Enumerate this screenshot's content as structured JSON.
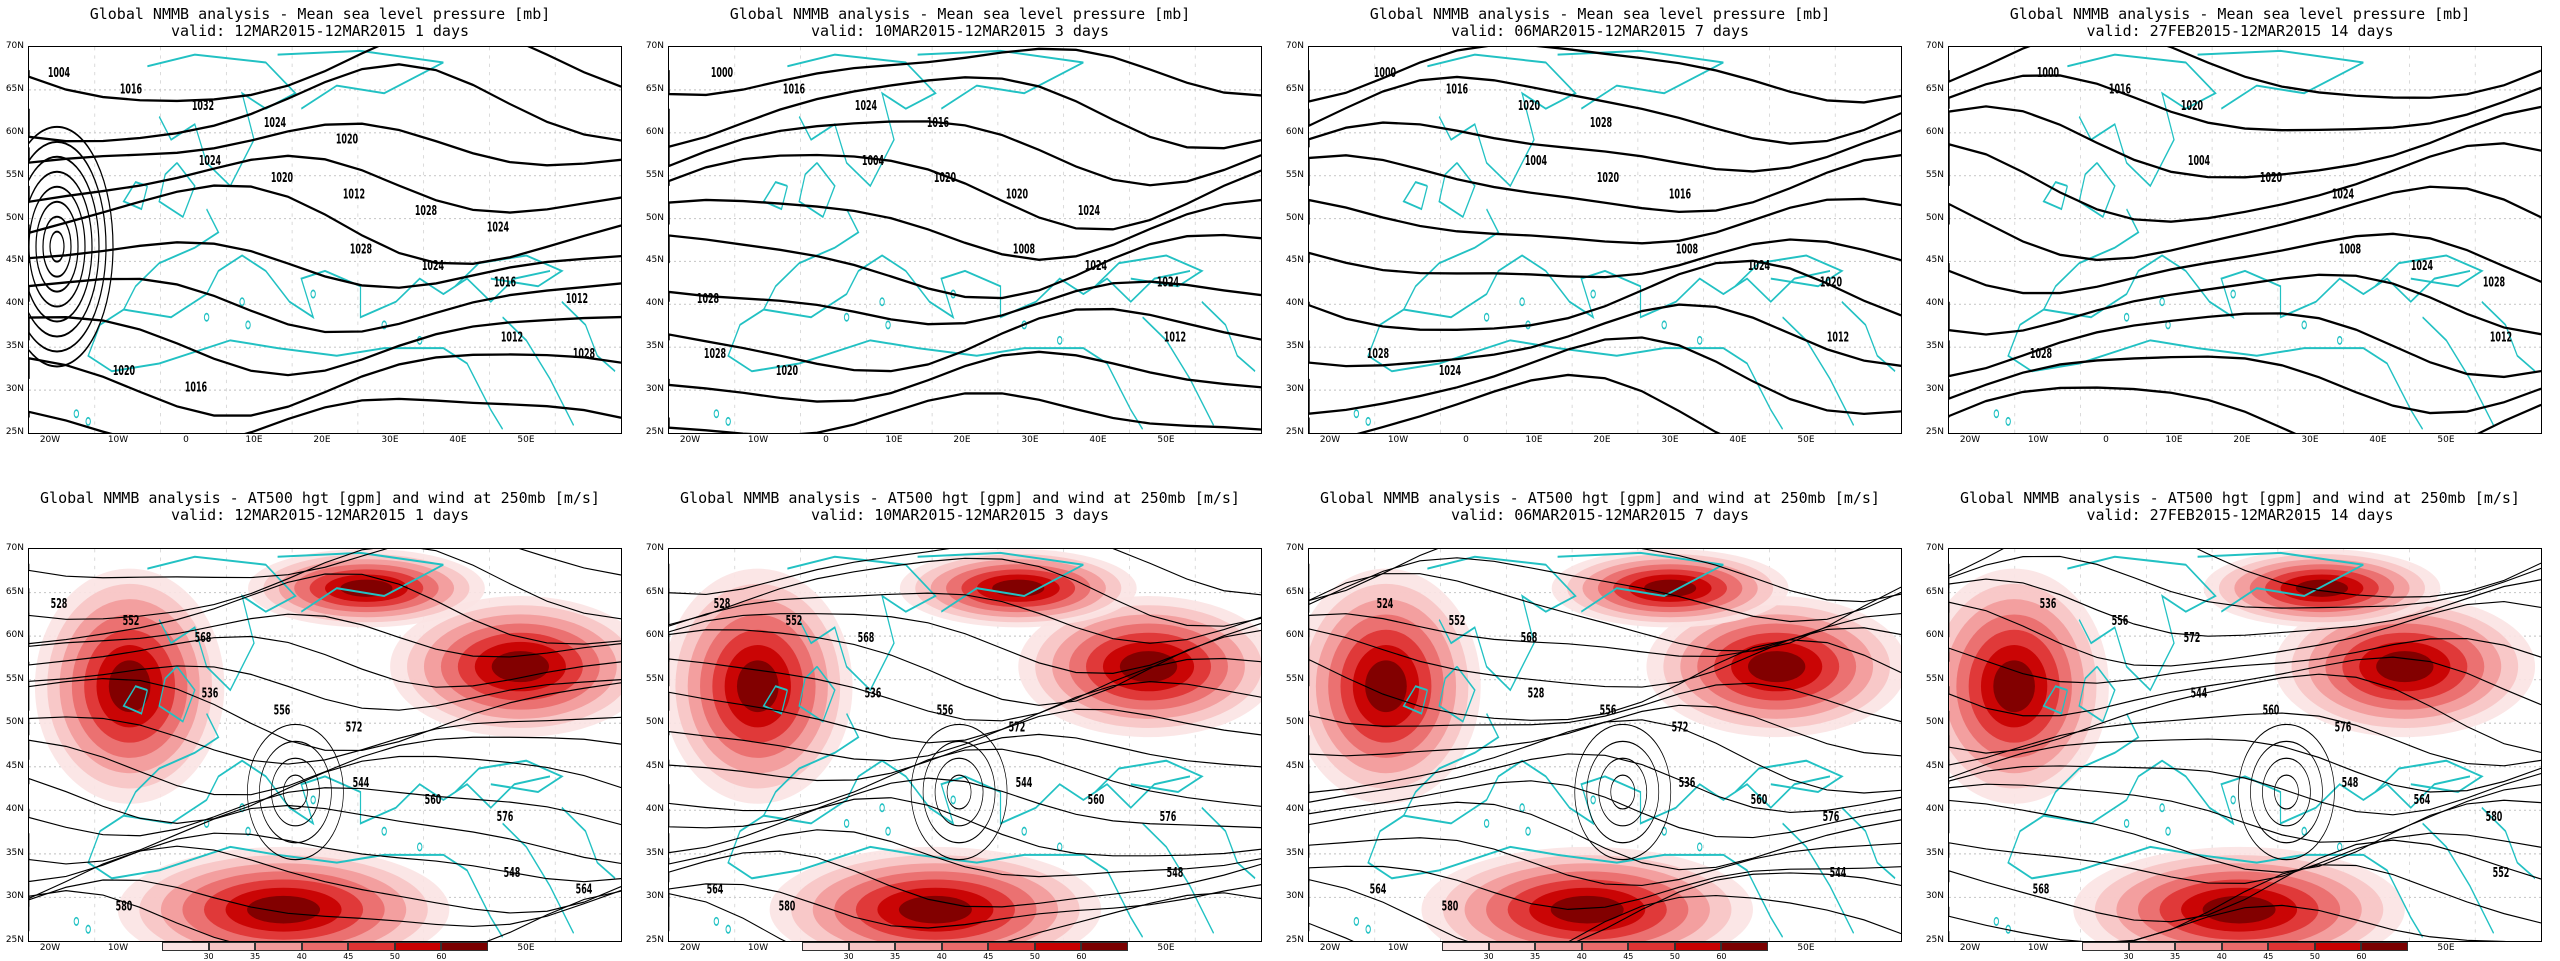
{
  "colors": {
    "coast": "#22c1c3",
    "isobar": "#000000",
    "jet_levels": [
      "#fbe3e3",
      "#f7c4c4",
      "#f29a9a",
      "#ea6b6b",
      "#df3333",
      "#c80000",
      "#7a0000"
    ]
  },
  "axes": {
    "lat_labels": [
      "70N",
      "65N",
      "60N",
      "55N",
      "50N",
      "45N",
      "40N",
      "35N",
      "30N",
      "25N"
    ],
    "lon_labels": [
      "20W",
      "10W",
      "0",
      "10E",
      "20E",
      "30E",
      "40E",
      "50E"
    ]
  },
  "colorbar": {
    "labels": [
      "30",
      "35",
      "40",
      "45",
      "50",
      "60"
    ]
  },
  "top_row": [
    {
      "line1": "Global NMMB analysis - Mean sea level pressure [mb]",
      "line2": "valid: 12MAR2015-12MAR2015   1 days",
      "contour_labels": [
        "1004",
        "1024",
        "1028",
        "1012",
        "1016",
        "1020",
        "1024",
        "1028",
        "1032",
        "1012",
        "1016",
        "1020",
        "1024",
        "1028",
        "1012",
        "1016",
        "1020",
        "1024"
      ]
    },
    {
      "line1": "Global NMMB analysis - Mean sea level pressure [mb]",
      "line2": "valid: 10MAR2015-12MAR2015   3 days",
      "contour_labels": [
        "1000",
        "1004",
        "1008",
        "1012",
        "1016",
        "1020",
        "1024",
        "1028",
        "1024",
        "1020",
        "1024",
        "1020",
        "1016",
        "1024",
        "1028"
      ]
    },
    {
      "line1": "Global NMMB analysis - Mean sea level pressure [mb]",
      "line2": "valid: 06MAR2015-12MAR2015   7 days",
      "contour_labels": [
        "1000",
        "1004",
        "1008",
        "1012",
        "1016",
        "1020",
        "1024",
        "1028",
        "1020",
        "1016",
        "1020",
        "1024",
        "1028"
      ]
    },
    {
      "line1": "Global NMMB analysis - Mean sea level pressure [mb]",
      "line2": "valid: 27FEB2015-12MAR2015   14 days",
      "contour_labels": [
        "1000",
        "1004",
        "1008",
        "1012",
        "1016",
        "1020",
        "1024",
        "1028",
        "1020",
        "1024",
        "1028"
      ]
    }
  ],
  "bottom_row": [
    {
      "line1": "Global NMMB analysis - AT500 hgt [gpm] and wind at 250mb [m/s]",
      "line2": "valid: 12MAR2015-12MAR2015   1 days",
      "contour_labels": [
        "528",
        "536",
        "544",
        "548",
        "552",
        "556",
        "560",
        "564",
        "568",
        "572",
        "576",
        "580"
      ]
    },
    {
      "line1": "Global NMMB analysis - AT500 hgt [gpm] and wind at 250mb [m/s]",
      "line2": "valid: 10MAR2015-12MAR2015   3 days",
      "contour_labels": [
        "528",
        "536",
        "544",
        "548",
        "552",
        "556",
        "560",
        "564",
        "568",
        "572",
        "576",
        "580"
      ]
    },
    {
      "line1": "Global NMMB analysis - AT500 hgt [gpm] and wind at 250mb [m/s]",
      "line2": "valid: 06MAR2015-12MAR2015   7 days",
      "contour_labels": [
        "524",
        "528",
        "536",
        "544",
        "552",
        "556",
        "560",
        "564",
        "568",
        "572",
        "576",
        "580"
      ]
    },
    {
      "line1": "Global NMMB analysis - AT500 hgt [gpm] and wind at 250mb [m/s]",
      "line2": "valid: 27FEB2015-12MAR2015   14 days",
      "contour_labels": [
        "536",
        "544",
        "548",
        "552",
        "556",
        "560",
        "564",
        "568",
        "572",
        "576",
        "580"
      ]
    }
  ]
}
